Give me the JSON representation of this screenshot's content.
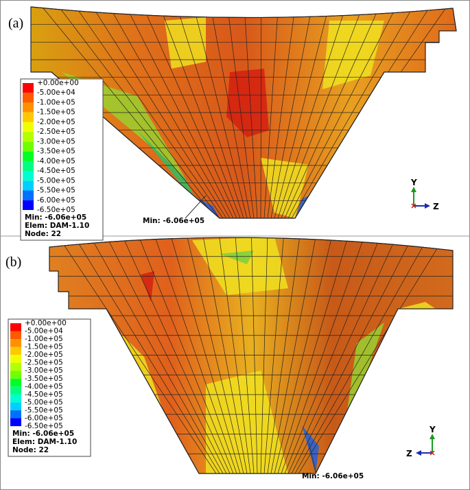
{
  "panels": [
    {
      "label": "(a)",
      "legend": [
        "+0.00e+00",
        "-5.00e+04",
        "-1.00e+05",
        "-1.50e+05",
        "-2.00e+05",
        "-2.50e+05",
        "-3.00e+05",
        "-3.50e+05",
        "-4.00e+05",
        "-4.50e+05",
        "-5.00e+05",
        "-5.50e+05",
        "-6.00e+05",
        "-6.50e+05"
      ],
      "info": [
        "Min: -6.06e+05",
        "Elem: DAM-1.10",
        "Node: 22"
      ],
      "min_annotation": "Min: -6.06e+05",
      "axes": {
        "vertical": "Y",
        "horizontal": "Z"
      }
    },
    {
      "label": "(b)",
      "legend": [
        "+0.00e+00",
        "-5.00e+04",
        "-1.00e+05",
        "-1.50e+05",
        "-2.00e+05",
        "-2.50e+05",
        "-3.00e+05",
        "-3.50e+05",
        "-4.00e+05",
        "-4.50e+05",
        "-5.00e+05",
        "-5.50e+05",
        "-6.00e+05",
        "-6.50e+05"
      ],
      "info": [
        "Min: -6.06e+05",
        "Elem: DAM-1.10",
        "Node: 22"
      ],
      "min_annotation": "Min: -6.06e+05",
      "axes": {
        "vertical": "Y",
        "horizontal": "Z"
      }
    }
  ]
}
